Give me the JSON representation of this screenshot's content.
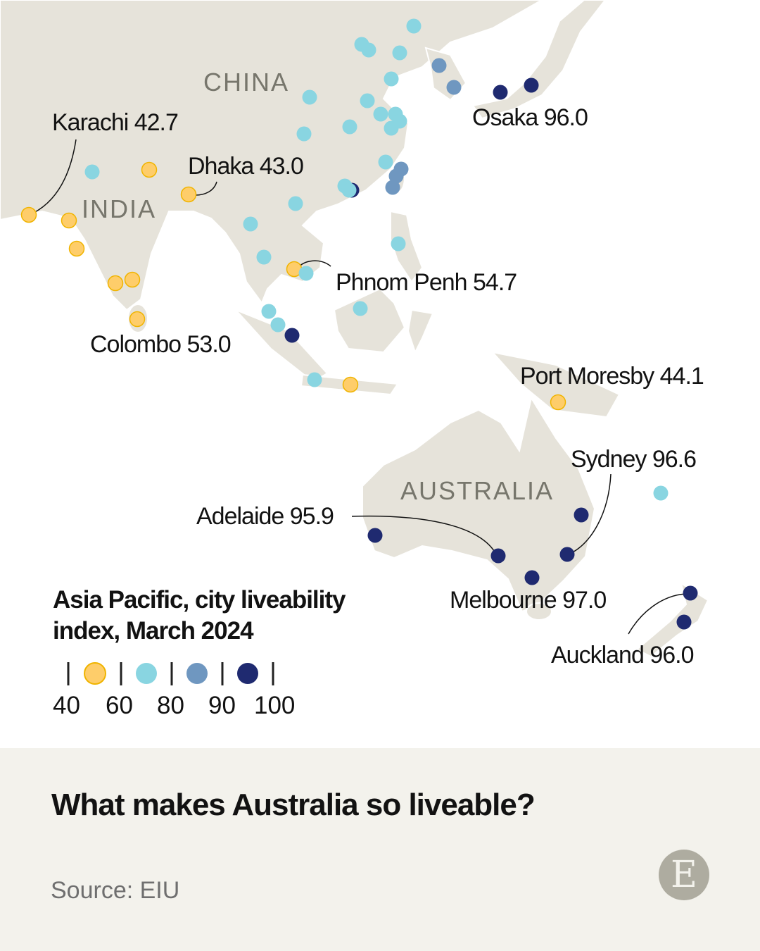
{
  "colors": {
    "land": "#e6e3da",
    "bins": [
      "#fecd6a",
      "#89d5e1",
      "#6f97c0",
      "#1f2a70"
    ],
    "yellow_stroke": "#f0b400",
    "footer_bg": "#f3f2ec",
    "logo_bg": "#aeaca0"
  },
  "countries": {
    "china": "CHINA",
    "india": "INDIA",
    "australia": "AUSTRALIA"
  },
  "cities": [
    {
      "label": "Karachi 42.7",
      "name": "Karachi",
      "value": 42.7
    },
    {
      "label": "Dhaka 43.0",
      "name": "Dhaka",
      "value": 43.0
    },
    {
      "label": "Osaka 96.0",
      "name": "Osaka",
      "value": 96.0
    },
    {
      "label": "Phnom Penh 54.7",
      "name": "Phnom Penh",
      "value": 54.7
    },
    {
      "label": "Colombo 53.0",
      "name": "Colombo",
      "value": 53.0
    },
    {
      "label": "Port Moresby 44.1",
      "name": "Port Moresby",
      "value": 44.1
    },
    {
      "label": "Sydney 96.6",
      "name": "Sydney",
      "value": 96.6
    },
    {
      "label": "Adelaide 95.9",
      "name": "Adelaide",
      "value": 95.9
    },
    {
      "label": "Melbourne 97.0",
      "name": "Melbourne",
      "value": 97.0
    },
    {
      "label": "Auckland 96.0",
      "name": "Auckland",
      "value": 96.0
    }
  ],
  "legend": {
    "title_line1": "Asia Pacific, city liveability",
    "title_line2": "index, March 2024",
    "breaks": [
      "40",
      "60",
      "80",
      "90",
      "100"
    ]
  },
  "footer": {
    "headline": "What makes Australia so liveable?",
    "source": "Source: EIU",
    "logo_letter": "E"
  }
}
